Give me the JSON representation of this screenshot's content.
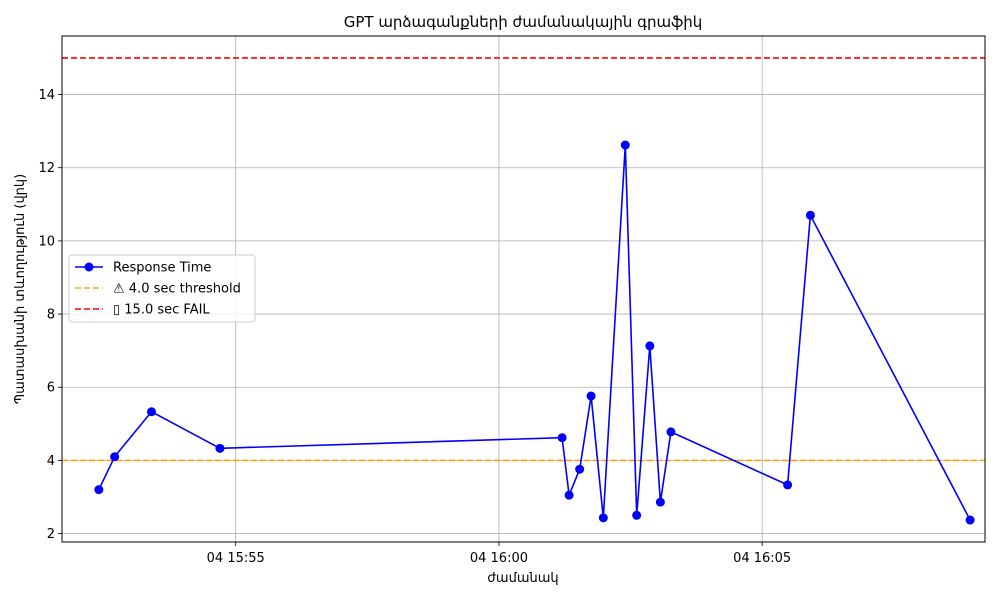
{
  "chart_data": {
    "type": "line",
    "title": "GPT արձագանքների ժամանակային գրաֆիկ",
    "xlabel": "ժամանակ",
    "ylabel": "Պատասխանի տևողություն (վրկ)",
    "x_tick_labels": [
      "04 15:55",
      "04 16:00",
      "04 16:05"
    ],
    "y_ticks": [
      2,
      4,
      6,
      8,
      10,
      12,
      14
    ],
    "xlim": [
      "04 15:51:42",
      "04 16:09:14"
    ],
    "ylim": [
      1.77,
      15.6
    ],
    "grid": true,
    "legend_position": "center-left",
    "series": [
      {
        "name": "Response Time",
        "color": "#0000ff",
        "marker": "circle",
        "x": [
          "04 15:52:24",
          "04 15:52:42",
          "04 15:53:24",
          "04 15:54:42",
          "04 16:01:12",
          "04 16:01:20",
          "04 16:01:32",
          "04 16:01:45",
          "04 16:01:59",
          "04 16:02:24",
          "04 16:02:37",
          "04 16:02:52",
          "04 16:03:04",
          "04 16:03:16",
          "04 16:05:29",
          "04 16:05:55",
          "04 16:08:57"
        ],
        "values": [
          3.2,
          4.1,
          5.33,
          4.33,
          4.62,
          3.05,
          3.76,
          5.76,
          2.43,
          12.62,
          2.5,
          7.13,
          2.86,
          4.78,
          3.33,
          10.7,
          2.37
        ]
      }
    ],
    "thresholds": [
      {
        "name": "⚠ 4.0 sec threshold",
        "value": 4.0,
        "color": "#ffa500",
        "style": "dashed"
      },
      {
        "name": "▯ 15.0 sec FAIL",
        "value": 15.0,
        "color": "#ff0000",
        "style": "dashed"
      }
    ]
  }
}
